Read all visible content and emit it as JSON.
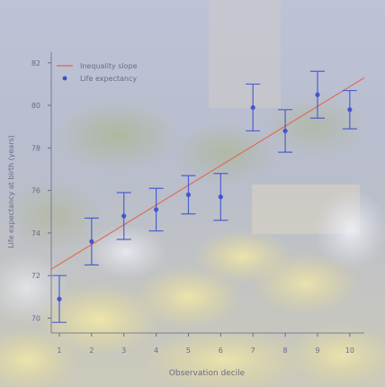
{
  "chart_data": {
    "type": "scatter",
    "title": "",
    "xlabel": "Observation decile",
    "ylabel": "Life expectancy at birth (years)",
    "xlim": [
      0.75,
      10.45
    ],
    "ylim": [
      69.3,
      82.5
    ],
    "x_ticks": [
      1,
      2,
      3,
      4,
      5,
      6,
      7,
      8,
      9,
      10
    ],
    "y_ticks": [
      70,
      72,
      74,
      76,
      78,
      80,
      82
    ],
    "y_tick_labels": [
      "70",
      "72",
      "74",
      "76",
      "78",
      "80",
      "82"
    ],
    "grid": false,
    "legend_position": "top-left",
    "series": [
      {
        "name": "Life expectancy",
        "kind": "points_with_error_bars",
        "color": "#3b4fd0",
        "x": [
          1,
          2,
          3,
          4,
          5,
          6,
          7,
          8,
          9,
          10
        ],
        "y": [
          70.9,
          73.6,
          74.8,
          75.1,
          75.8,
          75.7,
          79.9,
          78.8,
          80.5,
          79.8
        ],
        "err": [
          1.1,
          1.1,
          1.1,
          1.0,
          0.9,
          1.1,
          1.1,
          1.0,
          1.1,
          0.9
        ]
      },
      {
        "name": "Inequality slope",
        "kind": "line",
        "color": "#e0664a",
        "x": [
          0.75,
          10.45
        ],
        "y": [
          72.3,
          81.3
        ]
      }
    ]
  },
  "background": {
    "description_colors": {
      "sky": "#b9bfd6",
      "foliage": "#a9b48a",
      "flowers": "#e3d789",
      "wall": "#cfc6b6"
    }
  }
}
